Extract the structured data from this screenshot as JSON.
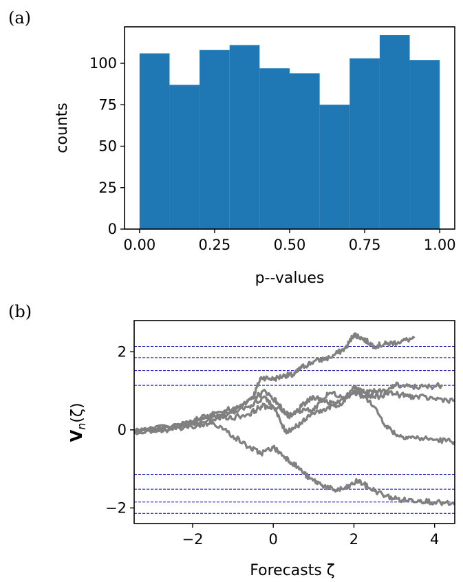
{
  "chart_data": [
    {
      "type": "bar",
      "panel_label": "(a)",
      "title": "",
      "xlabel": "p--values",
      "ylabel": "counts",
      "bin_edges": [
        0.0,
        0.1,
        0.2,
        0.3,
        0.4,
        0.5,
        0.6,
        0.7,
        0.8,
        0.9,
        1.0
      ],
      "values": [
        106,
        87,
        108,
        111,
        97,
        94,
        75,
        103,
        117,
        102
      ],
      "xlim": [
        -0.05,
        1.05
      ],
      "ylim": [
        0,
        122
      ],
      "xticks": [
        0.0,
        0.25,
        0.5,
        0.75,
        1.0
      ],
      "xtick_labels": [
        "0.00",
        "0.25",
        "0.50",
        "0.75",
        "1.00"
      ],
      "yticks": [
        0,
        25,
        50,
        75,
        100
      ],
      "ytick_labels": [
        "0",
        "25",
        "50",
        "75",
        "100"
      ],
      "bar_color": "#1f77b4",
      "grid": false
    },
    {
      "type": "line",
      "panel_label": "(b)",
      "title": "",
      "xlabel": "Forecasts ζ",
      "ylabel_main": "V",
      "ylabel_sub": "n",
      "ylabel_rest": "(ζ)",
      "xlim": [
        -3.45,
        4.5
      ],
      "ylim": [
        -2.4,
        2.8
      ],
      "xticks": [
        -2,
        0,
        2,
        4
      ],
      "xtick_labels": [
        "−2",
        "0",
        "2",
        "4"
      ],
      "yticks": [
        -2,
        0,
        2
      ],
      "ytick_labels": [
        "−2",
        "0",
        "2"
      ],
      "reference_levels": [
        2.14,
        1.85,
        1.52,
        1.14,
        -1.14,
        -1.52,
        -1.85,
        -2.14
      ],
      "reference_color": "#0000cc",
      "series_color": "#808080",
      "grid": false,
      "series": [
        {
          "points": [
            [
              -3.45,
              -0.05
            ],
            [
              -2.8,
              0.0
            ],
            [
              -2.0,
              0.2
            ],
            [
              -1.4,
              0.3
            ],
            [
              -0.9,
              0.55
            ],
            [
              -0.5,
              0.85
            ],
            [
              -0.3,
              1.35
            ],
            [
              0.0,
              1.3
            ],
            [
              0.3,
              1.4
            ],
            [
              0.5,
              1.4
            ],
            [
              0.7,
              1.6
            ],
            [
              1.0,
              1.75
            ],
            [
              1.4,
              1.85
            ],
            [
              1.8,
              2.1
            ],
            [
              2.0,
              2.45
            ],
            [
              2.2,
              2.35
            ],
            [
              2.5,
              2.15
            ],
            [
              2.8,
              2.2
            ],
            [
              3.1,
              2.25
            ],
            [
              3.5,
              2.35
            ]
          ]
        },
        {
          "points": [
            [
              -3.45,
              -0.05
            ],
            [
              -2.5,
              0.1
            ],
            [
              -1.8,
              0.2
            ],
            [
              -1.0,
              0.45
            ],
            [
              -0.5,
              0.8
            ],
            [
              -0.2,
              1.0
            ],
            [
              0.1,
              0.7
            ],
            [
              0.4,
              0.3
            ],
            [
              0.7,
              0.6
            ],
            [
              1.0,
              0.85
            ],
            [
              1.3,
              0.75
            ],
            [
              1.6,
              0.6
            ],
            [
              2.0,
              1.0
            ],
            [
              2.3,
              0.9
            ],
            [
              2.7,
              0.85
            ],
            [
              3.0,
              1.15
            ],
            [
              3.4,
              1.1
            ],
            [
              3.8,
              1.1
            ],
            [
              4.2,
              1.15
            ]
          ]
        },
        {
          "points": [
            [
              -3.45,
              -0.05
            ],
            [
              -2.5,
              0.05
            ],
            [
              -1.8,
              0.3
            ],
            [
              -1.2,
              0.5
            ],
            [
              -0.6,
              0.6
            ],
            [
              -0.2,
              0.85
            ],
            [
              0.0,
              0.6
            ],
            [
              0.4,
              0.4
            ],
            [
              0.8,
              0.5
            ],
            [
              1.2,
              0.45
            ],
            [
              1.6,
              0.75
            ],
            [
              2.0,
              0.95
            ],
            [
              2.4,
              0.75
            ],
            [
              2.8,
              0.1
            ],
            [
              3.1,
              -0.15
            ],
            [
              3.5,
              -0.2
            ],
            [
              4.0,
              -0.25
            ],
            [
              4.5,
              -0.3
            ]
          ]
        },
        {
          "points": [
            [
              -3.45,
              -0.05
            ],
            [
              -2.5,
              0.0
            ],
            [
              -1.9,
              0.1
            ],
            [
              -1.5,
              0.2
            ],
            [
              -1.0,
              -0.15
            ],
            [
              -0.6,
              -0.45
            ],
            [
              -0.3,
              -0.6
            ],
            [
              0.0,
              -0.45
            ],
            [
              0.3,
              -0.7
            ],
            [
              0.6,
              -0.95
            ],
            [
              0.9,
              -1.25
            ],
            [
              1.2,
              -1.4
            ],
            [
              1.5,
              -1.55
            ],
            [
              1.8,
              -1.5
            ],
            [
              2.1,
              -1.3
            ],
            [
              2.4,
              -1.5
            ],
            [
              2.8,
              -1.7
            ],
            [
              3.2,
              -1.8
            ],
            [
              3.6,
              -1.8
            ],
            [
              4.0,
              -1.85
            ],
            [
              4.5,
              -1.92
            ]
          ]
        },
        {
          "points": [
            [
              -3.45,
              -0.05
            ],
            [
              -2.5,
              0.05
            ],
            [
              -1.9,
              0.25
            ],
            [
              -1.5,
              0.35
            ],
            [
              -1.1,
              0.3
            ],
            [
              -0.6,
              0.4
            ],
            [
              -0.3,
              0.6
            ],
            [
              0.0,
              0.6
            ],
            [
              0.3,
              -0.05
            ],
            [
              0.5,
              0.05
            ],
            [
              0.8,
              0.25
            ],
            [
              1.1,
              0.65
            ],
            [
              1.4,
              0.95
            ],
            [
              1.8,
              0.85
            ],
            [
              2.0,
              1.1
            ],
            [
              2.3,
              0.95
            ],
            [
              2.7,
              1.0
            ],
            [
              3.1,
              0.9
            ],
            [
              3.5,
              0.85
            ],
            [
              4.0,
              0.8
            ],
            [
              4.5,
              0.75
            ]
          ]
        }
      ]
    }
  ]
}
